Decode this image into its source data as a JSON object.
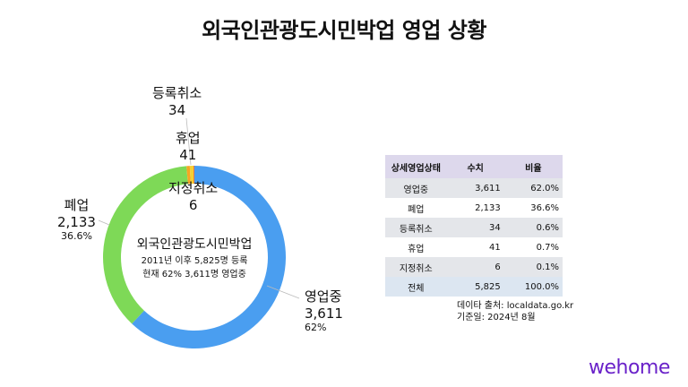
{
  "title": "외국인관광도시민박업 영업 상황",
  "chart_data": {
    "type": "pie",
    "subtype": "donut",
    "title": "외국인관광도시민박업 영업 상황",
    "categories": [
      "영업중",
      "폐업",
      "등록취소",
      "휴업",
      "지정취소"
    ],
    "values": [
      3611,
      2133,
      34,
      41,
      6
    ],
    "percentages": [
      62.0,
      36.6,
      0.6,
      0.7,
      0.1
    ],
    "colors": [
      "#4a9ef0",
      "#7ed957",
      "#f5a623",
      "#f5d033",
      "#e53b2c"
    ],
    "total": 5825,
    "center_text": [
      "외국인관광도시민박업",
      "2011년 이후 5,825명 등록",
      "현재 62% 3,611명 영업중"
    ]
  },
  "labels": {
    "operating": {
      "name": "영업중",
      "value": "3,611",
      "pct": "62%"
    },
    "closed": {
      "name": "폐업",
      "value": "2,133",
      "pct": "36.6%"
    },
    "cancelled": {
      "name": "등록취소",
      "value": "34"
    },
    "suspended": {
      "name": "휴업",
      "value": "41"
    },
    "revoked": {
      "name": "지정취소",
      "value": "6"
    }
  },
  "center": {
    "title": "외국인관광도시민박업",
    "line1": "2011년 이후 5,825명 등록",
    "line2": "현재 62% 3,611명 영업중"
  },
  "table": {
    "headers": [
      "상세영업상태",
      "수치",
      "비율"
    ],
    "rows": [
      [
        "영업중",
        "3,611",
        "62.0%"
      ],
      [
        "폐업",
        "2,133",
        "36.6%"
      ],
      [
        "등록취소",
        "34",
        "0.6%"
      ],
      [
        "휴업",
        "41",
        "0.7%"
      ],
      [
        "지정취소",
        "6",
        "0.1%"
      ],
      [
        "전체",
        "5,825",
        "100.0%"
      ]
    ]
  },
  "source": {
    "line1": "데이타 출처: localdata.go.kr",
    "line2": "기준일: 2024년 8월"
  },
  "logo": "wehome"
}
